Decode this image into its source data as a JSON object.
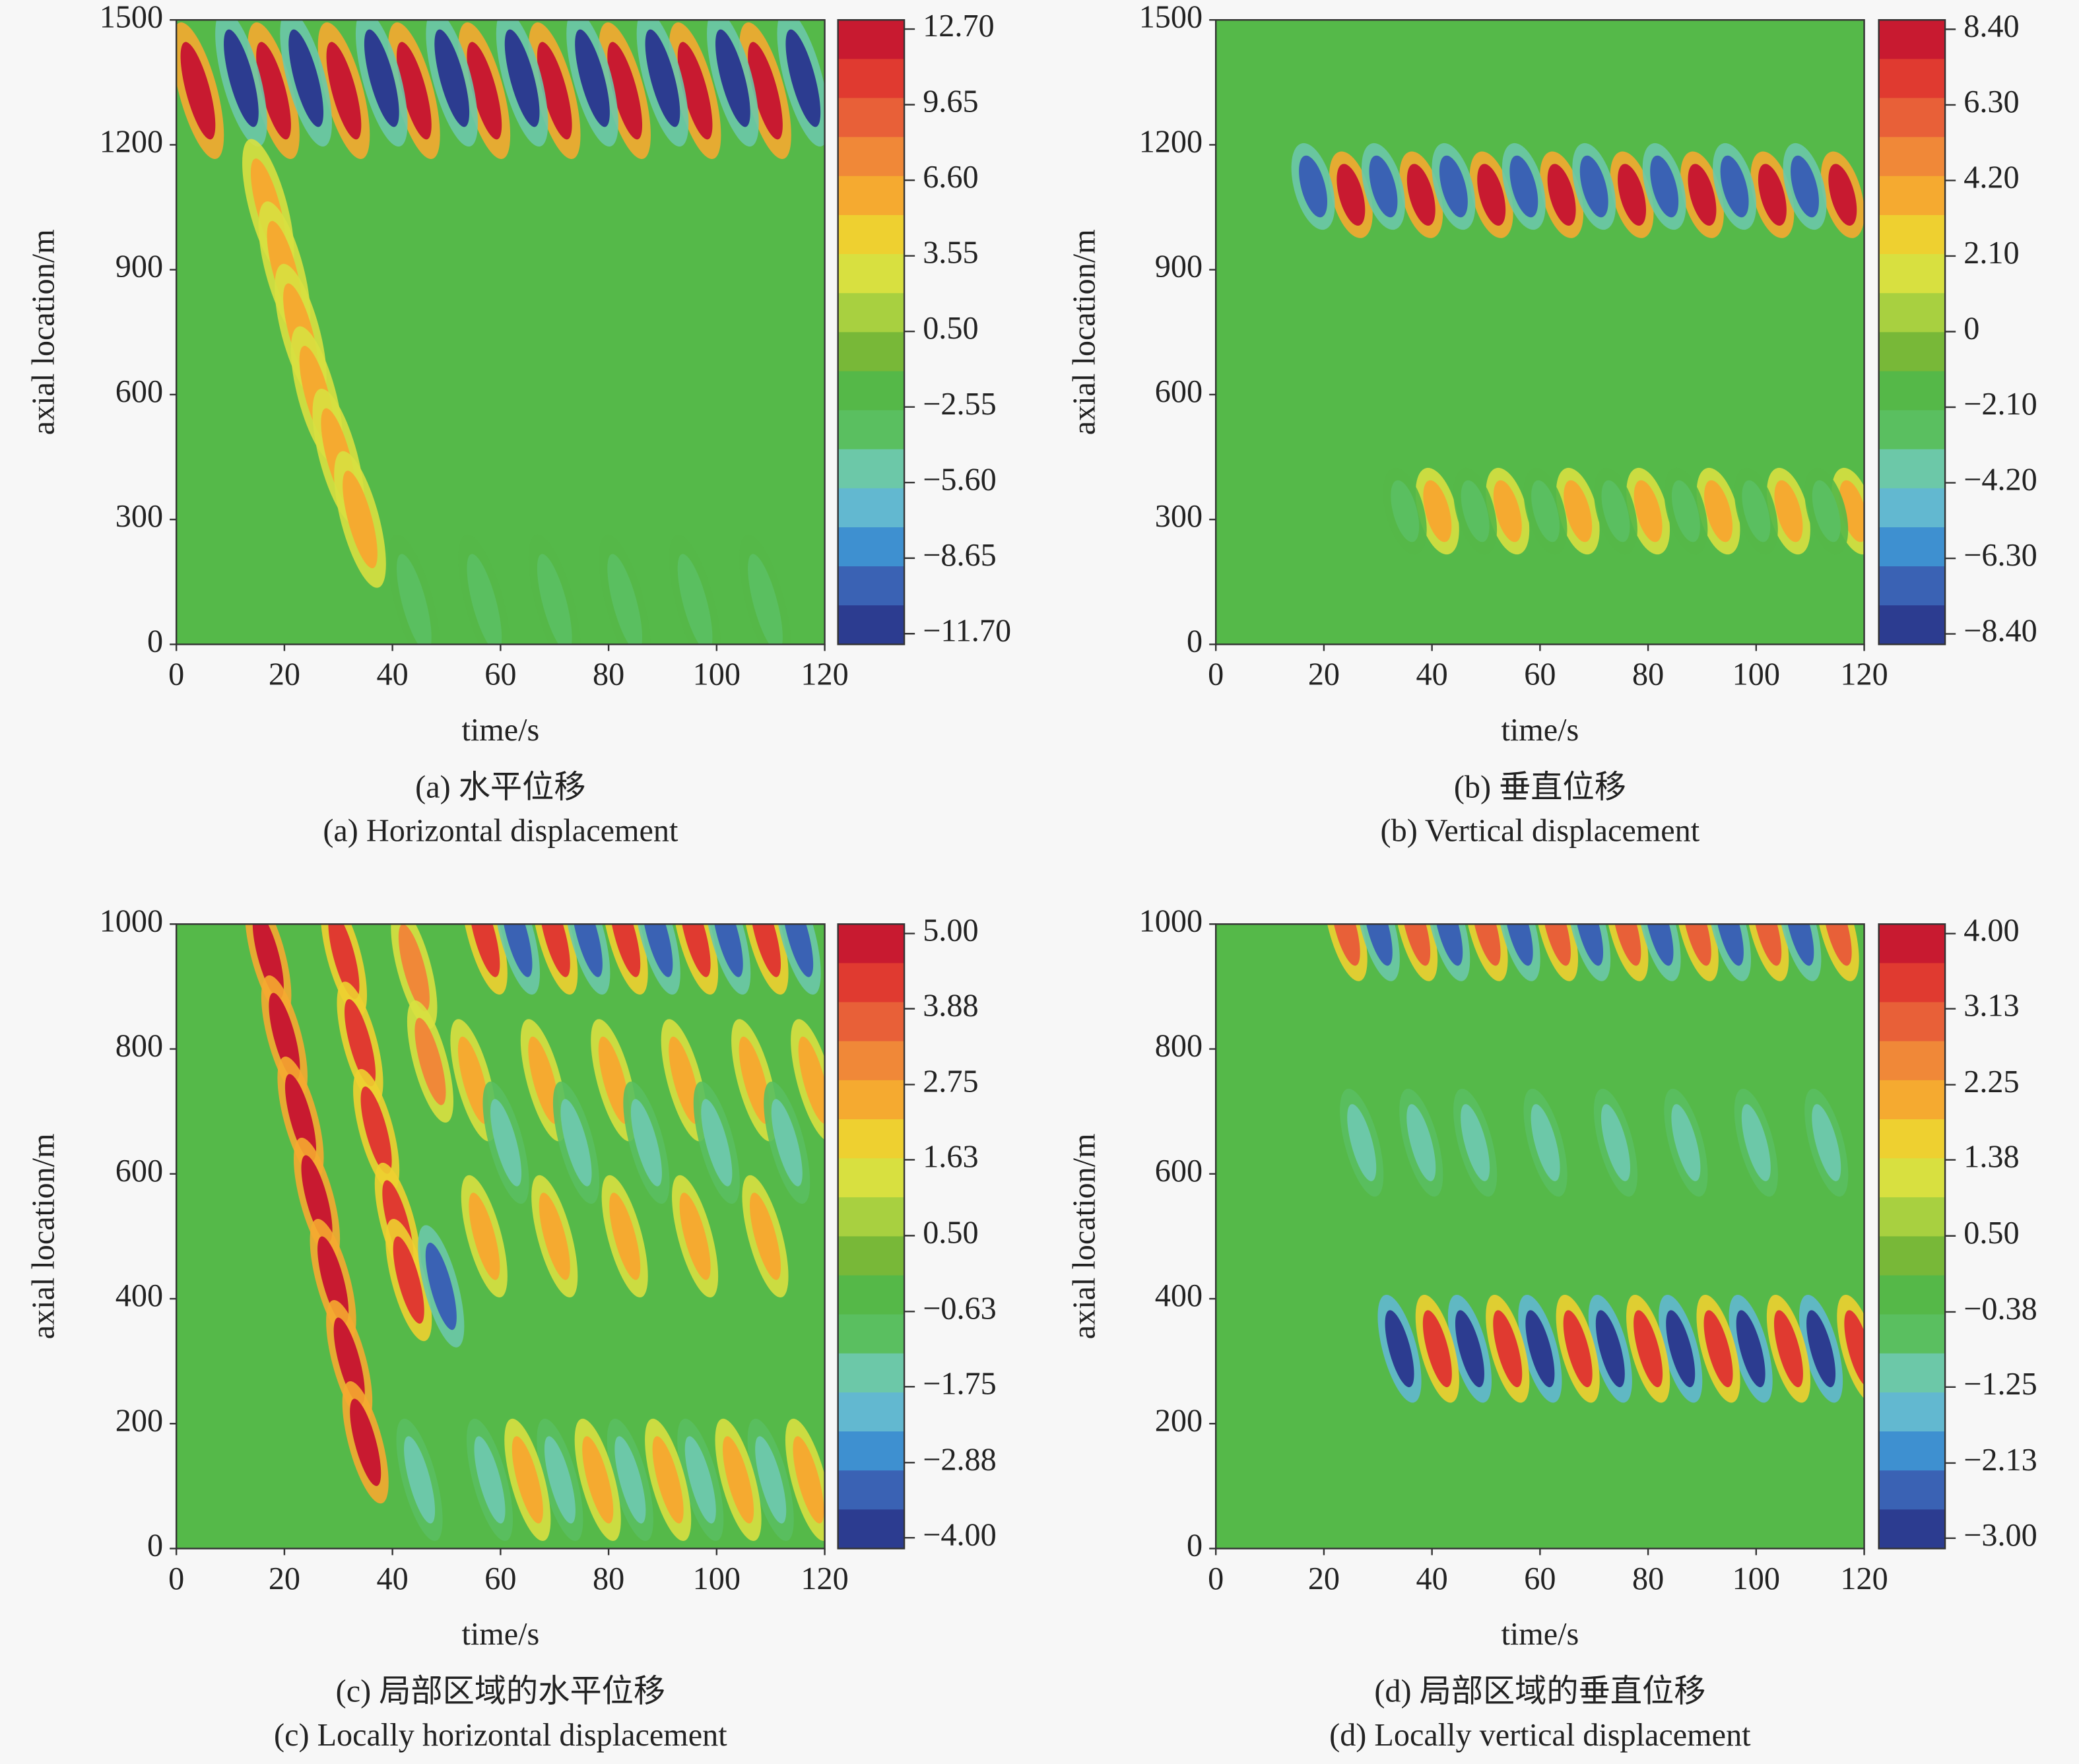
{
  "chart_data": [
    {
      "type": "contour",
      "xlabel": "time/s",
      "ylabel": "axial location/m",
      "caption_cn": "(a) 水平位移",
      "caption_en": "(a) Horizontal displacement",
      "xlim": [
        0,
        120
      ],
      "xticks": [
        0,
        20,
        40,
        60,
        80,
        100,
        120
      ],
      "ylim": [
        0,
        1500
      ],
      "yticks": [
        0,
        300,
        600,
        900,
        1200,
        1500
      ],
      "clim": [
        -12.13,
        13.07
      ],
      "cticks": [
        {
          "value": 12.7,
          "label": "12.70"
        },
        {
          "value": 9.65,
          "label": "9.65"
        },
        {
          "value": 6.6,
          "label": "6.60"
        },
        {
          "value": 3.55,
          "label": "3.55"
        },
        {
          "value": 0.5,
          "label": "0.50"
        },
        {
          "value": -2.55,
          "label": "−2.55"
        },
        {
          "value": -5.6,
          "label": "−5.60"
        },
        {
          "value": -8.65,
          "label": "−8.65"
        },
        {
          "value": -11.7,
          "label": "−11.70"
        }
      ],
      "colors": [
        "#c81a30",
        "#e03a30",
        "#e86038",
        "#f08838",
        "#f5aa30",
        "#eed030",
        "#d8e040",
        "#a8d040",
        "#78b838",
        "#55b848",
        "#5abf60",
        "#6cc8a8",
        "#62b8d0",
        "#3e90d0",
        "#3a62b4",
        "#2c3c90"
      ],
      "points": {
        "x": [
          4,
          18,
          31,
          44,
          57,
          70,
          83,
          96,
          109,
          12,
          24,
          38,
          51,
          64,
          77,
          90,
          103,
          116,
          17,
          20,
          23,
          26,
          30,
          34,
          44,
          57,
          70,
          83,
          96,
          109
        ],
        "y": [
          1330,
          1330,
          1330,
          1330,
          1330,
          1330,
          1330,
          1330,
          1330,
          1360,
          1360,
          1360,
          1360,
          1360,
          1360,
          1360,
          1360,
          1360,
          1050,
          900,
          750,
          600,
          450,
          300,
          100,
          100,
          100,
          100,
          100,
          100
        ],
        "values": [
          12,
          12,
          12,
          12,
          12,
          12,
          12,
          12,
          12,
          -11,
          -11,
          -11,
          -11,
          -11,
          -11,
          -11,
          -11,
          -11,
          6,
          6,
          6,
          6,
          6,
          6,
          -3,
          -3,
          -3,
          -3,
          -3,
          -3
        ]
      }
    },
    {
      "type": "contour",
      "xlabel": "time/s",
      "ylabel": "axial location/m",
      "caption_cn": "(b) 垂直位移",
      "caption_en": "(b) Vertical displacement",
      "xlim": [
        0,
        120
      ],
      "xticks": [
        0,
        20,
        40,
        60,
        80,
        100,
        120
      ],
      "ylim": [
        0,
        1500
      ],
      "yticks": [
        0,
        300,
        600,
        900,
        1200,
        1500
      ],
      "clim": [
        -8.69,
        8.66
      ],
      "cticks": [
        {
          "value": 8.4,
          "label": "8.40"
        },
        {
          "value": 6.3,
          "label": "6.30"
        },
        {
          "value": 4.2,
          "label": "4.20"
        },
        {
          "value": 2.1,
          "label": "2.10"
        },
        0,
        {
          "value": -2.1,
          "label": "−2.10"
        },
        {
          "value": -4.2,
          "label": "−4.20"
        },
        {
          "value": -6.3,
          "label": "−6.30"
        },
        {
          "value": -8.4,
          "label": "−8.40"
        }
      ],
      "colors": [
        "#c81a30",
        "#e03a30",
        "#e86038",
        "#f08838",
        "#f5aa30",
        "#eed030",
        "#d8e040",
        "#a8d040",
        "#78b838",
        "#55b848",
        "#5abf60",
        "#6cc8a8",
        "#62b8d0",
        "#3e90d0",
        "#3a62b4",
        "#2c3c90"
      ],
      "points": {
        "x": [
          25,
          38,
          51,
          64,
          77,
          90,
          103,
          116,
          18,
          31,
          44,
          57,
          70,
          83,
          96,
          109,
          41,
          54,
          67,
          80,
          93,
          106,
          118,
          35,
          48,
          61,
          74,
          87,
          100,
          113
        ],
        "y": [
          1080,
          1080,
          1080,
          1080,
          1080,
          1080,
          1080,
          1080,
          1100,
          1100,
          1100,
          1100,
          1100,
          1100,
          1100,
          1100,
          320,
          320,
          320,
          320,
          320,
          320,
          320,
          320,
          320,
          320,
          320,
          320,
          320,
          320
        ],
        "values": [
          8,
          8,
          8,
          8,
          8,
          8,
          8,
          8,
          -7.5,
          -7.5,
          -7.5,
          -7.5,
          -7.5,
          -7.5,
          -7.5,
          -7.5,
          4,
          4,
          4,
          4,
          4,
          4,
          4,
          -3,
          -3,
          -3,
          -3,
          -3,
          -3,
          -3
        ]
      }
    },
    {
      "type": "contour",
      "xlabel": "time/s",
      "ylabel": "axial location/m",
      "caption_cn": "(c) 局部区域的水平位移",
      "caption_en": "(c) Locally horizontal displacement",
      "xlim": [
        0,
        120
      ],
      "xticks": [
        0,
        20,
        40,
        60,
        80,
        100,
        120
      ],
      "ylim": [
        0,
        1000
      ],
      "yticks": [
        0,
        200,
        400,
        600,
        800,
        1000
      ],
      "clim": [
        -4.16,
        5.14
      ],
      "cticks": [
        {
          "value": 5,
          "label": "5.00"
        },
        {
          "value": 3.88,
          "label": "3.88"
        },
        {
          "value": 2.75,
          "label": "2.75"
        },
        {
          "value": 1.63,
          "label": "1.63"
        },
        {
          "value": 0.5,
          "label": "0.50"
        },
        {
          "value": -0.63,
          "label": "−0.63"
        },
        {
          "value": -1.75,
          "label": "−1.75"
        },
        {
          "value": -2.88,
          "label": "−2.88"
        },
        {
          "value": -4,
          "label": "−4.00"
        }
      ],
      "colors": [
        "#c81a30",
        "#e03a30",
        "#e86038",
        "#f08838",
        "#f5aa30",
        "#eed030",
        "#d8e040",
        "#a8d040",
        "#78b838",
        "#55b848",
        "#5abf60",
        "#6cc8a8",
        "#62b8d0",
        "#3e90d0",
        "#3a62b4",
        "#2c3c90"
      ],
      "points": {
        "x": [
          17,
          20,
          23,
          26,
          29,
          32,
          35,
          31,
          34,
          37,
          41,
          43,
          44,
          47,
          55,
          68,
          81,
          94,
          107,
          118,
          57,
          70,
          83,
          96,
          109,
          61,
          74,
          87,
          100,
          113,
          49,
          57,
          70,
          83,
          96,
          109,
          63,
          76,
          89,
          102,
          115,
          45,
          58,
          71,
          84,
          97,
          110,
          65,
          78,
          91,
          104,
          117
        ],
        "y": [
          950,
          820,
          690,
          560,
          430,
          300,
          170,
          950,
          810,
          670,
          520,
          430,
          930,
          780,
          750,
          750,
          750,
          750,
          750,
          750,
          500,
          500,
          500,
          500,
          500,
          650,
          650,
          650,
          650,
          650,
          420,
          985,
          985,
          985,
          985,
          985,
          985,
          985,
          985,
          985,
          985,
          110,
          110,
          110,
          110,
          110,
          110,
          110,
          110,
          110,
          110,
          110
        ],
        "values": [
          5,
          5,
          5,
          5,
          5,
          5,
          5,
          4.3,
          4.3,
          4.3,
          4.3,
          4.3,
          3.3,
          3.3,
          2.5,
          2.5,
          2.5,
          2.5,
          2.5,
          2.5,
          2.5,
          2.5,
          2.5,
          2.5,
          2.5,
          -1.5,
          -1.5,
          -1.5,
          -1.5,
          -1.5,
          -3.2,
          4,
          4,
          4,
          4,
          4,
          -3.5,
          -3.5,
          -3.5,
          -3.5,
          -3.5,
          -1.5,
          -1.5,
          -1.5,
          -1.5,
          -1.5,
          -1.5,
          2.5,
          2.5,
          2.5,
          2.5,
          2.5
        ]
      }
    },
    {
      "type": "contour",
      "xlabel": "time/s",
      "ylabel": "axial location/m",
      "caption_cn": "(d) 局部区域的垂直位移",
      "caption_en": "(d) Locally vertical displacement",
      "xlim": [
        0,
        120
      ],
      "xticks": [
        0,
        20,
        40,
        60,
        80,
        100,
        120
      ],
      "ylim": [
        0,
        1000
      ],
      "yticks": [
        0,
        200,
        400,
        600,
        800,
        1000
      ],
      "clim": [
        -3.12,
        4.11
      ],
      "cticks": [
        {
          "value": 4,
          "label": "4.00"
        },
        {
          "value": 3.13,
          "label": "3.13"
        },
        {
          "value": 2.25,
          "label": "2.25"
        },
        {
          "value": 1.38,
          "label": "1.38"
        },
        {
          "value": 0.5,
          "label": "0.50"
        },
        {
          "value": -0.38,
          "label": "−0.38"
        },
        {
          "value": -1.25,
          "label": "−1.25"
        },
        {
          "value": -2.13,
          "label": "−2.13"
        },
        {
          "value": -3,
          "label": "−3.00"
        }
      ],
      "colors": [
        "#c81a30",
        "#e03a30",
        "#e86038",
        "#f08838",
        "#f5aa30",
        "#eed030",
        "#d8e040",
        "#a8d040",
        "#78b838",
        "#55b848",
        "#5abf60",
        "#6cc8a8",
        "#62b8d0",
        "#3e90d0",
        "#3a62b4",
        "#2c3c90"
      ],
      "points": {
        "x": [
          34,
          47,
          60,
          73,
          86,
          99,
          112,
          41,
          54,
          67,
          80,
          93,
          106,
          119,
          24,
          37,
          50,
          63,
          76,
          89,
          102,
          115,
          30,
          43,
          56,
          69,
          82,
          95,
          108,
          27,
          38,
          48,
          61,
          74,
          87,
          100,
          113
        ],
        "y": [
          320,
          320,
          320,
          320,
          320,
          320,
          320,
          320,
          320,
          320,
          320,
          320,
          320,
          320,
          995,
          995,
          995,
          995,
          995,
          995,
          995,
          995,
          995,
          995,
          995,
          995,
          995,
          995,
          995,
          650,
          650,
          650,
          650,
          650,
          650,
          650,
          650
        ],
        "values": [
          -3,
          -3,
          -3,
          -3,
          -3,
          -3,
          -3,
          3.5,
          3.5,
          3.5,
          3.5,
          3.5,
          3.5,
          3.5,
          3,
          3,
          3,
          3,
          3,
          3,
          3,
          3,
          -2.5,
          -2.5,
          -2.5,
          -2.5,
          -2.5,
          -2.5,
          -2.5,
          -1.2,
          -1.2,
          -1.2,
          -1.2,
          -1.2,
          -1.2,
          -1.2,
          -1.2
        ]
      }
    }
  ]
}
